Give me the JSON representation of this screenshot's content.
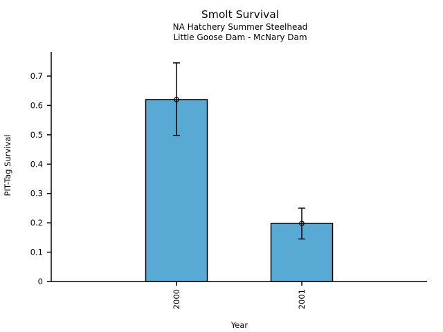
{
  "figure": {
    "background": "#ffffff",
    "text_color": "#000000"
  },
  "chart_data": {
    "type": "bar",
    "title": "Smolt Survival",
    "subtitle": [
      "NA Hatchery Summer Steelhead",
      "Little Goose Dam - McNary Dam"
    ],
    "xlabel": "Year",
    "ylabel": "PIT-Tag Survival",
    "categories": [
      "2000",
      "2001"
    ],
    "values": [
      0.62,
      0.198
    ],
    "error_low": [
      0.498,
      0.145
    ],
    "error_high": [
      0.745,
      0.25
    ],
    "ylim": [
      0,
      0.7825
    ],
    "yticks": [
      0,
      0.1,
      0.2,
      0.3,
      0.4,
      0.5,
      0.6,
      0.7
    ],
    "ytick_labels": [
      "0",
      "0.1",
      "0.2",
      "0.3",
      "0.4",
      "0.5",
      "0.6",
      "0.7"
    ],
    "grid": false,
    "legend": false,
    "bar_color": "#58A9D4",
    "bar_edge_color": "#000000",
    "error_color": "#000000",
    "marker": "open-circle"
  }
}
